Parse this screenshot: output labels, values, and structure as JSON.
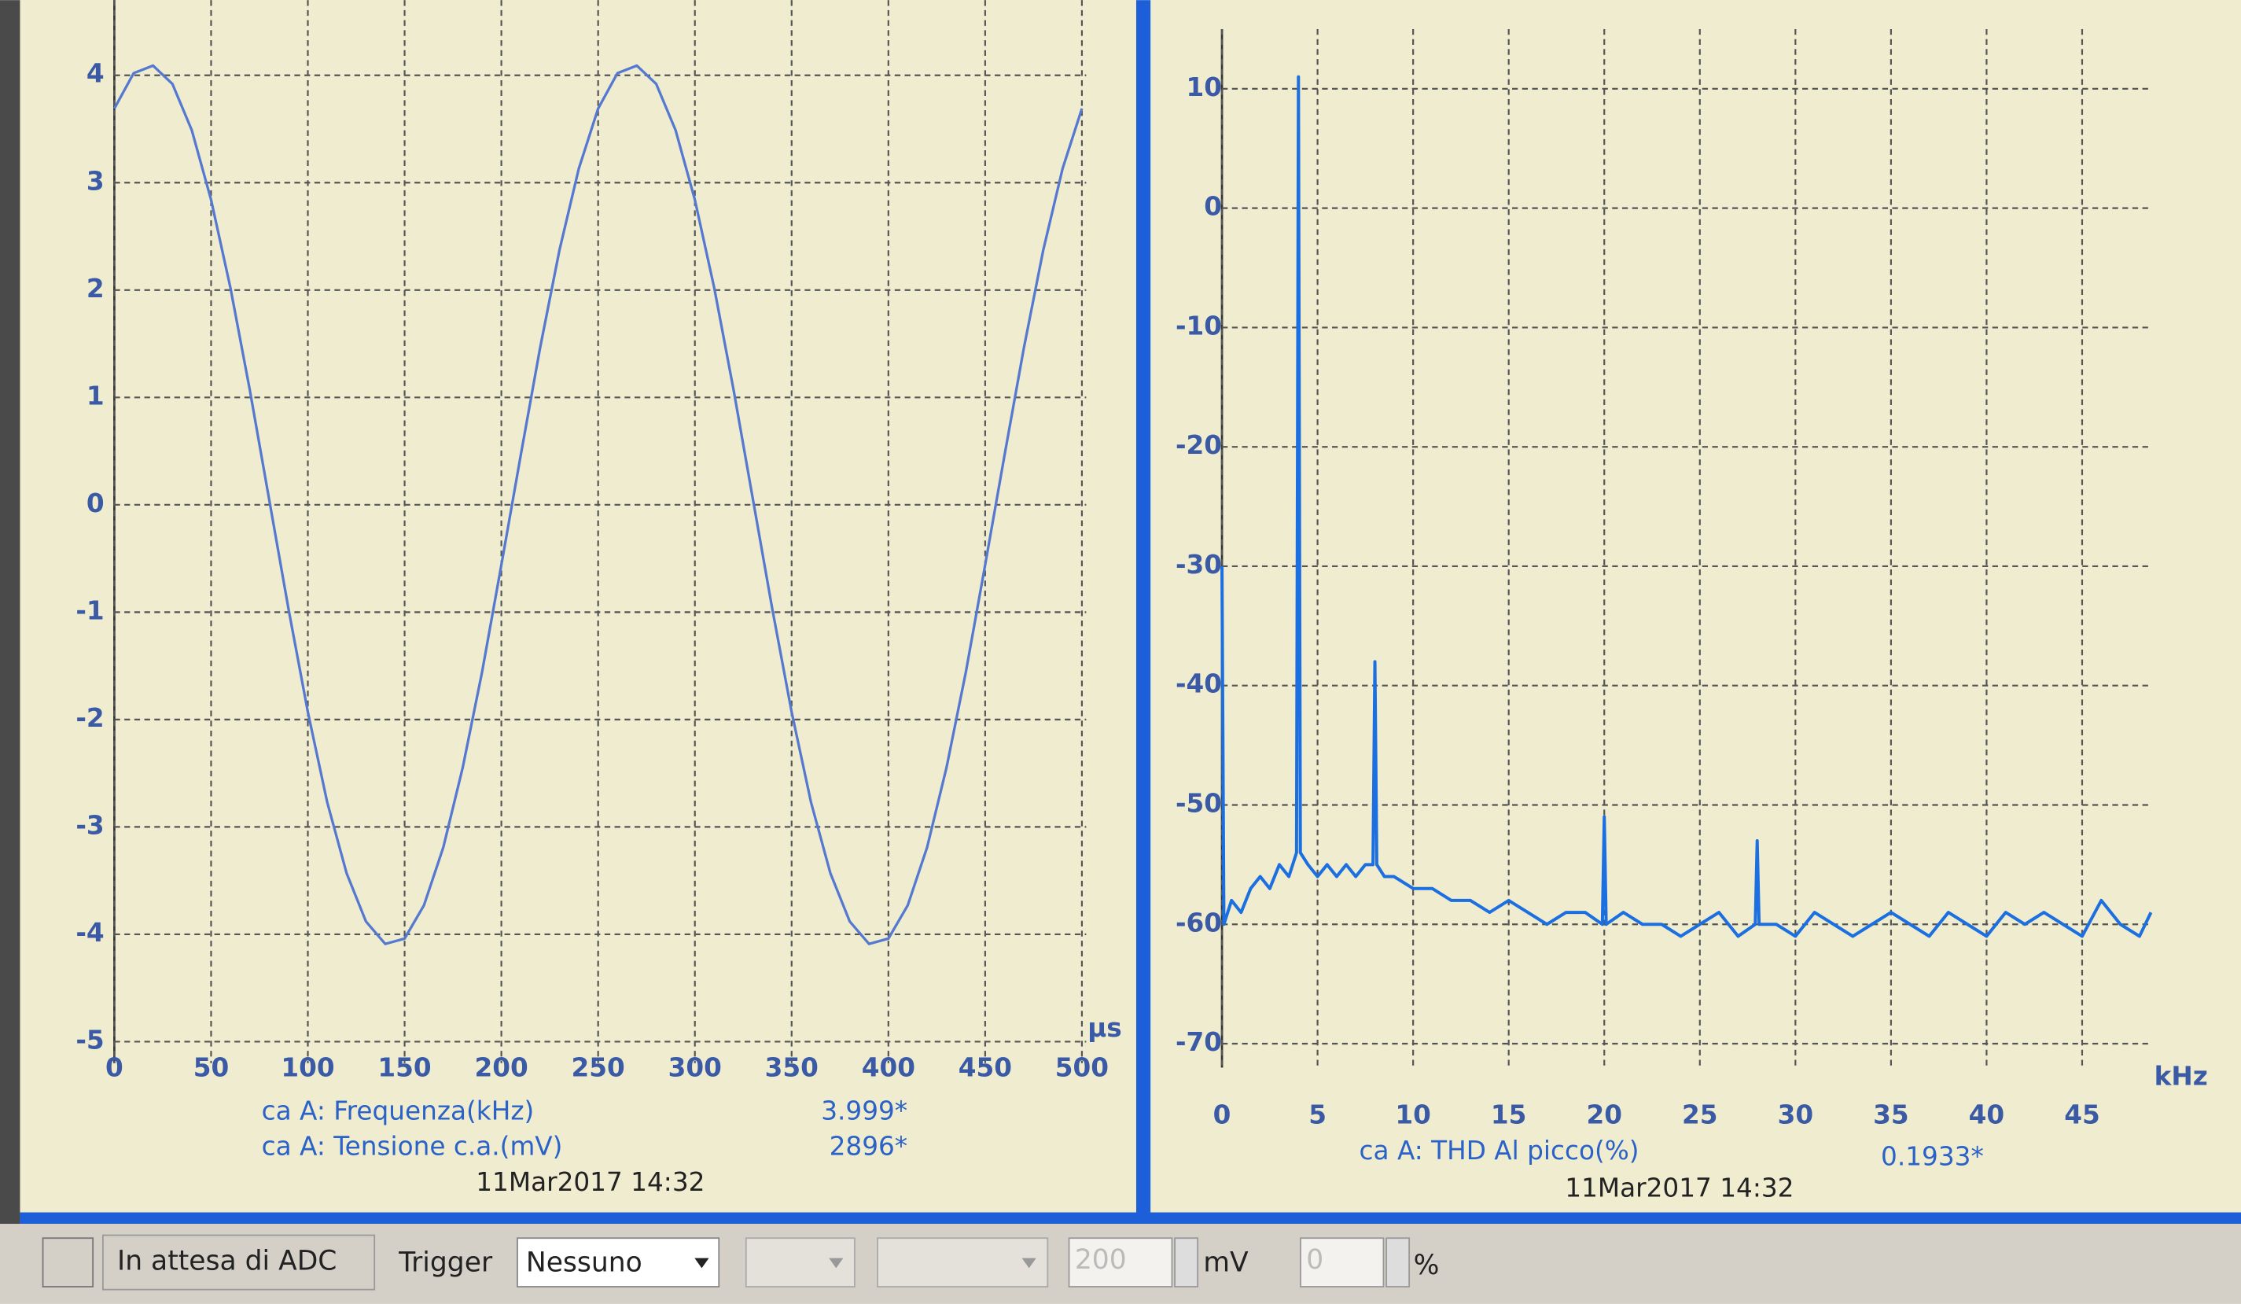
{
  "chart_data": [
    {
      "type": "line",
      "x_label": "µs",
      "color": "#5578d0",
      "x": [
        0,
        10,
        20,
        30,
        40,
        50,
        60,
        70,
        80,
        90,
        100,
        110,
        120,
        130,
        140,
        150,
        160,
        170,
        180,
        190,
        200,
        210,
        220,
        230,
        240,
        250,
        260,
        270,
        280,
        290,
        300,
        310,
        320,
        330,
        340,
        350,
        360,
        370,
        380,
        390,
        400,
        410,
        420,
        430,
        440,
        450,
        460,
        470,
        480,
        490,
        500
      ],
      "values": [
        3.69,
        4.02,
        4.09,
        3.92,
        3.49,
        2.84,
        2.02,
        1.07,
        0.05,
        -0.97,
        -1.93,
        -2.77,
        -3.43,
        -3.88,
        -4.09,
        -4.04,
        -3.73,
        -3.19,
        -2.45,
        -1.56,
        -0.56,
        0.46,
        1.46,
        2.37,
        3.13,
        3.69,
        4.02,
        4.09,
        3.92,
        3.49,
        2.84,
        2.02,
        1.07,
        0.05,
        -0.97,
        -1.93,
        -2.77,
        -3.43,
        -3.88,
        -4.09,
        -4.04,
        -3.73,
        -3.19,
        -2.45,
        -1.56,
        -0.56,
        0.46,
        1.46,
        2.37,
        3.13,
        3.69
      ],
      "xlim": [
        0,
        500
      ],
      "xticks": [
        0,
        50,
        100,
        150,
        200,
        250,
        300,
        350,
        400,
        450,
        500
      ],
      "ylim": [
        -5.2,
        4.7
      ],
      "yticks": [
        -5,
        -4,
        -3,
        -2,
        -1,
        0,
        1,
        2,
        3,
        4
      ],
      "grid": true,
      "annotations": [
        {
          "label": "ca A: Frequenza(kHz)",
          "value": "3.999*"
        },
        {
          "label": "ca A: Tensione c.a.(mV)",
          "value": "2896*"
        }
      ],
      "timestamp": "11Mar2017  14:32"
    },
    {
      "type": "line",
      "x_label": "kHz",
      "color": "#1b6fe0",
      "x": [
        0,
        0.1,
        0.5,
        1,
        1.5,
        2,
        2.5,
        3,
        3.5,
        3.9,
        4,
        4.1,
        4.5,
        5,
        5.5,
        6,
        6.5,
        7,
        7.5,
        7.9,
        8,
        8.1,
        8.5,
        9,
        10,
        11,
        12,
        13,
        14,
        15,
        16,
        17,
        18,
        19,
        19.9,
        20,
        20.1,
        21,
        22,
        23,
        24,
        25,
        26,
        27,
        27.9,
        28,
        28.1,
        29,
        30,
        31,
        32,
        33,
        34,
        35,
        36,
        37,
        38,
        39,
        40,
        41,
        42,
        43,
        44,
        45,
        46,
        47,
        48,
        48.6
      ],
      "values": [
        -30,
        -60,
        -58,
        -59,
        -57,
        -56,
        -57,
        -55,
        -56,
        -54,
        11,
        -54,
        -55,
        -56,
        -55,
        -56,
        -55,
        -56,
        -55,
        -55,
        -38,
        -55,
        -56,
        -56,
        -57,
        -57,
        -58,
        -58,
        -59,
        -58,
        -59,
        -60,
        -59,
        -59,
        -60,
        -51,
        -60,
        -59,
        -60,
        -60,
        -61,
        -60,
        -59,
        -61,
        -60,
        -53,
        -60,
        -60,
        -61,
        -59,
        -60,
        -61,
        -60,
        -59,
        -60,
        -61,
        -59,
        -60,
        -61,
        -59,
        -60,
        -59,
        -60,
        -61,
        -58,
        -60,
        -61,
        -59
      ],
      "xlim": [
        0,
        48.6
      ],
      "xticks": [
        0,
        5,
        10,
        15,
        20,
        25,
        30,
        35,
        40,
        45
      ],
      "ylim": [
        -72,
        15
      ],
      "yticks": [
        -70,
        -60,
        -50,
        -40,
        -30,
        -20,
        -10,
        0,
        10
      ],
      "grid": true,
      "annotations": [
        {
          "label": "ca A: THD Al picco(%)",
          "value": "0.1933*"
        }
      ],
      "timestamp": "11Mar2017  14:32"
    }
  ],
  "status_bar": {
    "status": "In attesa di ADC",
    "trigger_label": "Trigger",
    "trigger_mode": "Nessuno",
    "range_value": "200",
    "range_unit": "mV",
    "percent_value": "0",
    "percent_unit": "%"
  }
}
